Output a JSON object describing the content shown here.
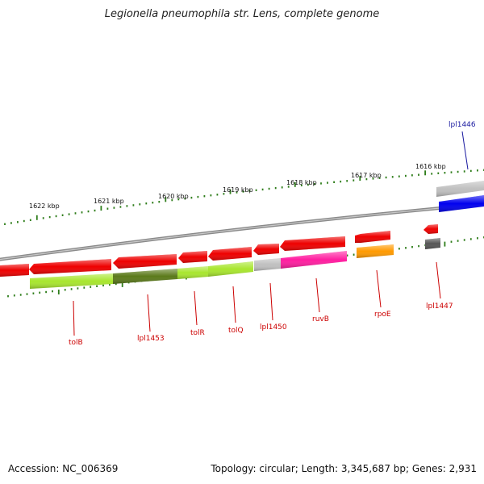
{
  "title": "Legionella pneumophila str. Lens, complete genome",
  "footer": {
    "accession": "Accession: NC_006369",
    "summary": "Topology: circular; Length: 3,345,687 bp; Genes: 2,931"
  },
  "colors": {
    "backbone": "#7a7a7a",
    "ticks": "#2e7d1a",
    "gene_red": "#ee0000",
    "label_red": "#cc0000",
    "label_blue": "#1a1aa0",
    "blue_feature": "#0000ee",
    "light_green": "#a8e62e",
    "dark_green": "#5b7a1a",
    "pink": "#ff1ea0",
    "orange": "#ff9a00",
    "grey": "#c0c0c0",
    "dark_grey": "#555555"
  },
  "scale_labels": [
    "1622 kbp",
    "1621 kbp",
    "1620 kbp",
    "1619 kbp",
    "1618 kbp",
    "1617 kbp",
    "1616 kbp"
  ],
  "gene_labels": [
    {
      "text": "tolB",
      "color": "red"
    },
    {
      "text": "lpl1453",
      "color": "red"
    },
    {
      "text": "tolR",
      "color": "red"
    },
    {
      "text": "tolQ",
      "color": "red"
    },
    {
      "text": "lpl1450",
      "color": "red"
    },
    {
      "text": "ruvB",
      "color": "red"
    },
    {
      "text": "rpoE",
      "color": "red"
    },
    {
      "text": "lpl1447",
      "color": "red"
    },
    {
      "text": "lpl1446",
      "color": "blue"
    }
  ]
}
